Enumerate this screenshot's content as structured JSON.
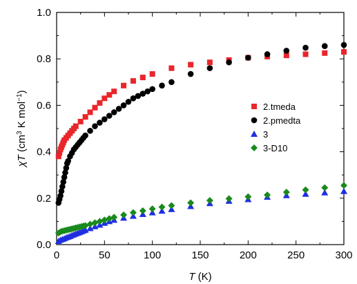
{
  "chart_data": {
    "type": "scatter",
    "xlabel": {
      "var": "T",
      "unit": " (K)"
    },
    "ylabel": {
      "pre": "χ",
      "var": "T",
      "unit_a": " (cm",
      "sup1": "3",
      "unit_b": " K mol",
      "sup2": "−1",
      "unit_c": ")"
    },
    "xlim": [
      0,
      300
    ],
    "ylim": [
      0,
      1.0
    ],
    "xticks": [
      "0",
      "50",
      "100",
      "150",
      "200",
      "250",
      "300"
    ],
    "yticks": [
      "0.0",
      "0.2",
      "0.4",
      "0.6",
      "0.8",
      "1.0"
    ],
    "grid": false,
    "legend_position": "right-middle",
    "series": [
      {
        "name": "2.tmeda",
        "color": "#e8262b",
        "marker": "square",
        "points": [
          [
            2,
            0.38
          ],
          [
            3,
            0.395
          ],
          [
            4,
            0.41
          ],
          [
            5,
            0.42
          ],
          [
            6,
            0.43
          ],
          [
            7,
            0.44
          ],
          [
            8,
            0.45
          ],
          [
            10,
            0.46
          ],
          [
            12,
            0.47
          ],
          [
            14,
            0.48
          ],
          [
            16,
            0.49
          ],
          [
            18,
            0.5
          ],
          [
            20,
            0.51
          ],
          [
            25,
            0.53
          ],
          [
            30,
            0.55
          ],
          [
            35,
            0.57
          ],
          [
            40,
            0.59
          ],
          [
            45,
            0.61
          ],
          [
            50,
            0.63
          ],
          [
            55,
            0.645
          ],
          [
            60,
            0.66
          ],
          [
            70,
            0.685
          ],
          [
            80,
            0.705
          ],
          [
            90,
            0.72
          ],
          [
            100,
            0.735
          ],
          [
            120,
            0.76
          ],
          [
            140,
            0.775
          ],
          [
            160,
            0.785
          ],
          [
            180,
            0.795
          ],
          [
            200,
            0.805
          ],
          [
            220,
            0.81
          ],
          [
            240,
            0.815
          ],
          [
            260,
            0.82
          ],
          [
            280,
            0.825
          ],
          [
            300,
            0.83
          ]
        ]
      },
      {
        "name": "2.pmedta",
        "color": "#000000",
        "marker": "circle",
        "points": [
          [
            2,
            0.18
          ],
          [
            3,
            0.195
          ],
          [
            4,
            0.21
          ],
          [
            5,
            0.23
          ],
          [
            6,
            0.25
          ],
          [
            7,
            0.27
          ],
          [
            8,
            0.29
          ],
          [
            9,
            0.31
          ],
          [
            10,
            0.33
          ],
          [
            11,
            0.35
          ],
          [
            12,
            0.36
          ],
          [
            14,
            0.38
          ],
          [
            16,
            0.395
          ],
          [
            18,
            0.41
          ],
          [
            20,
            0.42
          ],
          [
            22,
            0.43
          ],
          [
            24,
            0.44
          ],
          [
            26,
            0.45
          ],
          [
            28,
            0.46
          ],
          [
            30,
            0.47
          ],
          [
            35,
            0.49
          ],
          [
            40,
            0.51
          ],
          [
            45,
            0.525
          ],
          [
            50,
            0.54
          ],
          [
            55,
            0.555
          ],
          [
            60,
            0.57
          ],
          [
            65,
            0.585
          ],
          [
            70,
            0.6
          ],
          [
            75,
            0.615
          ],
          [
            80,
            0.63
          ],
          [
            85,
            0.64
          ],
          [
            90,
            0.65
          ],
          [
            95,
            0.66
          ],
          [
            100,
            0.67
          ],
          [
            110,
            0.685
          ],
          [
            120,
            0.7
          ],
          [
            140,
            0.735
          ],
          [
            160,
            0.76
          ],
          [
            180,
            0.785
          ],
          [
            200,
            0.805
          ],
          [
            220,
            0.82
          ],
          [
            240,
            0.835
          ],
          [
            260,
            0.848
          ],
          [
            280,
            0.855
          ],
          [
            300,
            0.86
          ]
        ]
      },
      {
        "name": "3",
        "color": "#1f2fe0",
        "marker": "triangle",
        "points": [
          [
            2,
            0.015
          ],
          [
            4,
            0.02
          ],
          [
            6,
            0.023
          ],
          [
            8,
            0.026
          ],
          [
            10,
            0.03
          ],
          [
            12,
            0.033
          ],
          [
            14,
            0.036
          ],
          [
            16,
            0.04
          ],
          [
            18,
            0.043
          ],
          [
            20,
            0.047
          ],
          [
            22,
            0.05
          ],
          [
            24,
            0.053
          ],
          [
            26,
            0.056
          ],
          [
            28,
            0.06
          ],
          [
            30,
            0.063
          ],
          [
            35,
            0.07
          ],
          [
            40,
            0.078
          ],
          [
            45,
            0.085
          ],
          [
            50,
            0.093
          ],
          [
            55,
            0.1
          ],
          [
            60,
            0.106
          ],
          [
            70,
            0.115
          ],
          [
            80,
            0.123
          ],
          [
            90,
            0.131
          ],
          [
            100,
            0.138
          ],
          [
            110,
            0.145
          ],
          [
            120,
            0.152
          ],
          [
            140,
            0.165
          ],
          [
            160,
            0.178
          ],
          [
            180,
            0.188
          ],
          [
            200,
            0.195
          ],
          [
            220,
            0.205
          ],
          [
            240,
            0.212
          ],
          [
            260,
            0.218
          ],
          [
            280,
            0.224
          ],
          [
            300,
            0.23
          ]
        ]
      },
      {
        "name": "3-D10",
        "color": "#1a8a1e",
        "marker": "diamond",
        "points": [
          [
            2,
            0.05
          ],
          [
            4,
            0.055
          ],
          [
            6,
            0.058
          ],
          [
            8,
            0.06
          ],
          [
            10,
            0.062
          ],
          [
            12,
            0.064
          ],
          [
            14,
            0.066
          ],
          [
            16,
            0.068
          ],
          [
            18,
            0.07
          ],
          [
            20,
            0.072
          ],
          [
            22,
            0.074
          ],
          [
            24,
            0.076
          ],
          [
            26,
            0.078
          ],
          [
            28,
            0.08
          ],
          [
            30,
            0.082
          ],
          [
            35,
            0.088
          ],
          [
            40,
            0.094
          ],
          [
            45,
            0.1
          ],
          [
            50,
            0.106
          ],
          [
            55,
            0.112
          ],
          [
            60,
            0.118
          ],
          [
            70,
            0.128
          ],
          [
            80,
            0.138
          ],
          [
            90,
            0.146
          ],
          [
            100,
            0.154
          ],
          [
            110,
            0.162
          ],
          [
            120,
            0.168
          ],
          [
            140,
            0.18
          ],
          [
            160,
            0.19
          ],
          [
            180,
            0.198
          ],
          [
            200,
            0.206
          ],
          [
            220,
            0.214
          ],
          [
            240,
            0.226
          ],
          [
            260,
            0.236
          ],
          [
            280,
            0.245
          ],
          [
            300,
            0.255
          ]
        ]
      }
    ]
  }
}
